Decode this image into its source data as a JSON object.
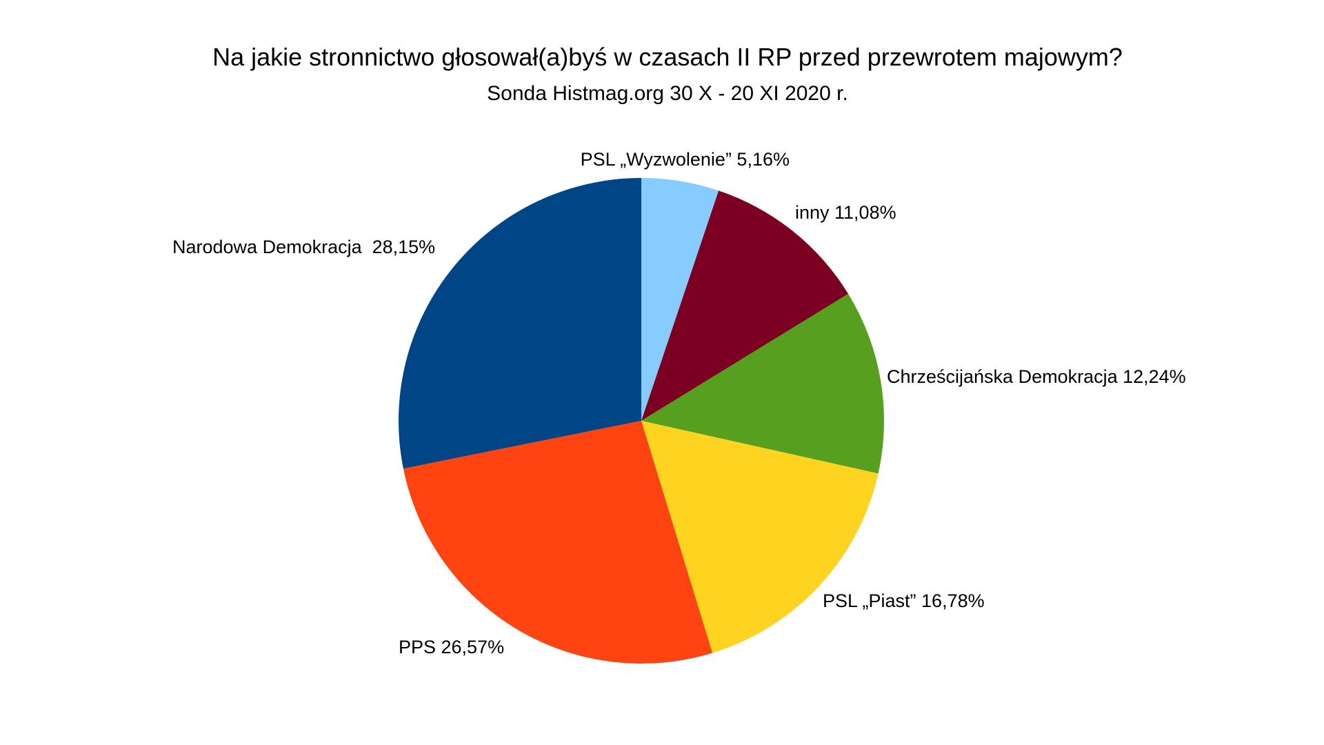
{
  "chart_data": {
    "type": "pie",
    "title": "Na jakie stronnictwo głosował(a)byś w czasach II RP przed przewrotem majowym?",
    "subtitle": "Sonda Histmag.org 30 X - 20 XI 2020 r.",
    "start_angle_deg": 0,
    "direction": "clockwise",
    "legend": "none",
    "slices": [
      {
        "name": "PSL „Wyzwolenie”",
        "value": 5.16,
        "label": "PSL „Wyzwolenie” 5,16%",
        "color": "#87CCFF"
      },
      {
        "name": "inny",
        "value": 11.08,
        "label": "inny 11,08%",
        "color": "#7B0022"
      },
      {
        "name": "Chrześcijańska Demokracja",
        "value": 12.24,
        "label": "Chrześcijańska Demokracja 12,24%",
        "color": "#579F1E"
      },
      {
        "name": "PSL „Piast”",
        "value": 16.78,
        "label": "PSL „Piast” 16,78%",
        "color": "#FFD420"
      },
      {
        "name": "PPS",
        "value": 26.57,
        "label": "PPS 26,57%",
        "color": "#FF4411"
      },
      {
        "name": "Narodowa Demokracja",
        "value": 28.15,
        "label": "Narodowa Demokracja  28,15%",
        "color": "#004586"
      }
    ]
  }
}
